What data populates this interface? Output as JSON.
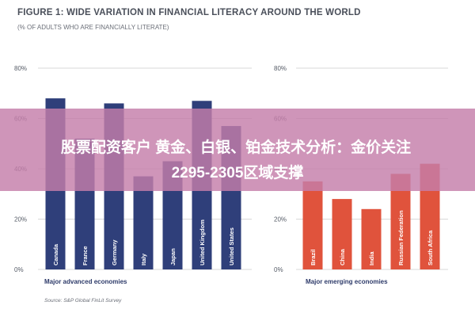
{
  "header": {
    "title": "FIGURE 1: WIDE VARIATION IN FINANCIAL LITERACY AROUND THE WORLD",
    "subtitle": "(% OF ADULTS WHO ARE FINANCIALLY LITERATE)"
  },
  "overlay": {
    "line1": "股票配资客户 黄金、白银、铂金技术分析：金价关注",
    "line2": "2295-2305区域支撑"
  },
  "footer": {
    "source": "Source: S&P Global FinLit Survey"
  },
  "colors": {
    "advanced": "#2f3f7a",
    "emerging": "#e0533c",
    "grid": "#d9d9d9",
    "overlay": "#c47eaa"
  },
  "chart_data": [
    {
      "type": "bar",
      "categories": [
        "Canada",
        "France",
        "Germany",
        "Italy",
        "Japan",
        "United Kingdom",
        "United States"
      ],
      "values": [
        68,
        52,
        66,
        37,
        43,
        67,
        57
      ],
      "ylim": [
        0,
        80
      ],
      "yticks": [
        "0%",
        "20%",
        "40%",
        "60%",
        "80%"
      ],
      "group_label": "Major advanced economies",
      "color": "#2f3f7a"
    },
    {
      "type": "bar",
      "categories": [
        "Brazil",
        "China",
        "India",
        "Russian Federation",
        "South Africa"
      ],
      "values": [
        35,
        28,
        24,
        38,
        42
      ],
      "ylim": [
        0,
        80
      ],
      "yticks": [
        "0%",
        "20%",
        "40%",
        "60%",
        "80%"
      ],
      "group_label": "Major emerging economies",
      "color": "#e0533c"
    }
  ]
}
